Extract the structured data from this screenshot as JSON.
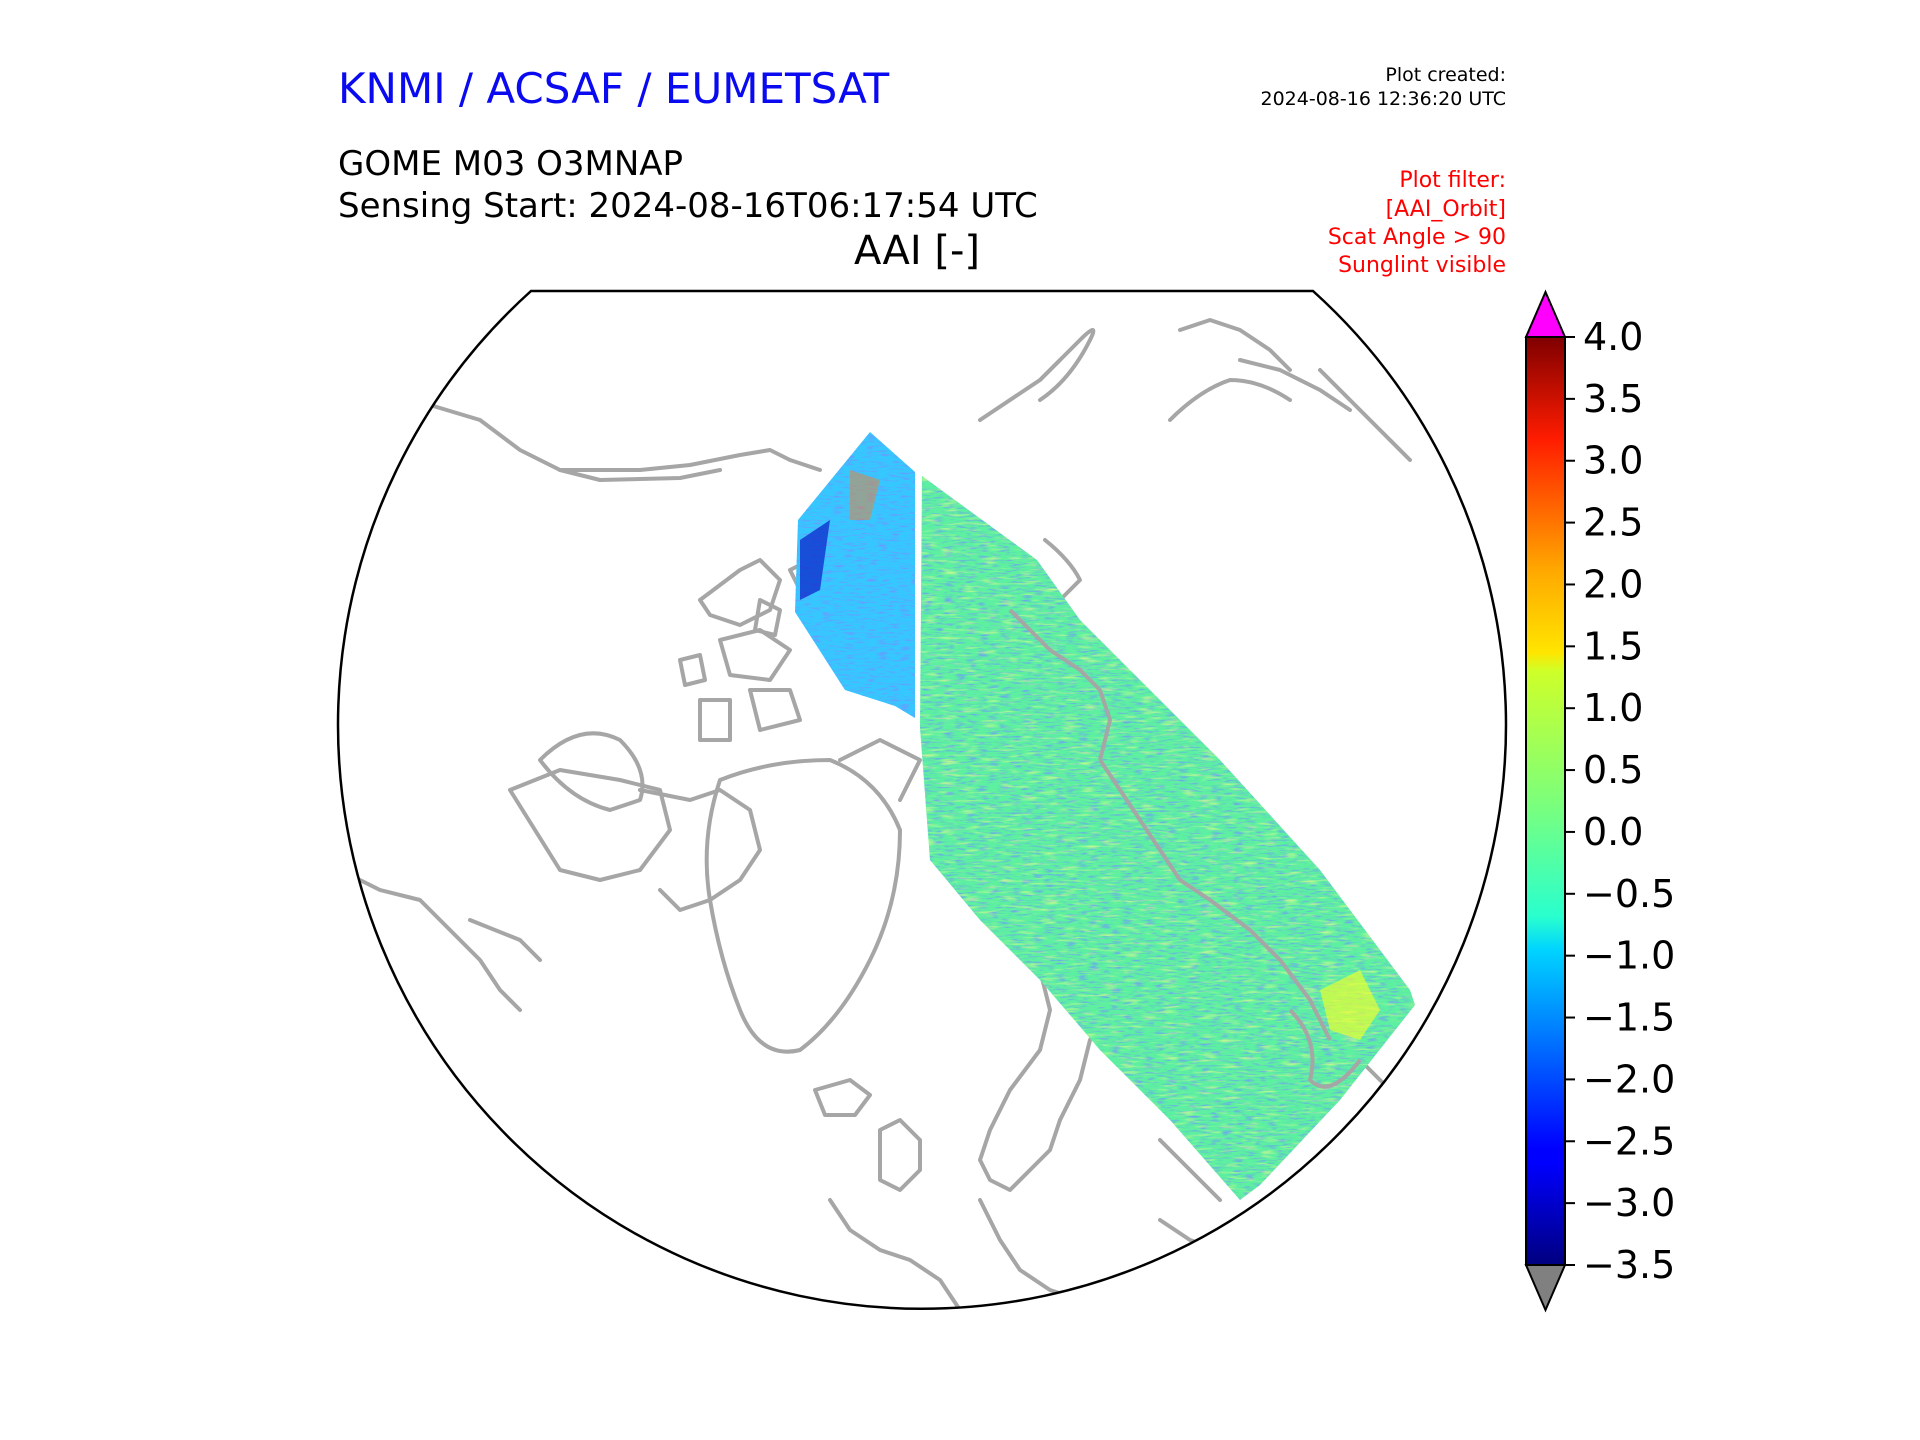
{
  "header": {
    "brand": "KNMI / ACSAF / EUMETSAT",
    "plot_created_label": "Plot created:",
    "plot_created_value": "2024-08-16 12:36:20 UTC",
    "product": "GOME M03 O3MNAP",
    "sensing_start": "Sensing Start: 2024-08-16T06:17:54 UTC",
    "variable_title": "AAI [-]"
  },
  "plot_filter": [
    "Plot filter:",
    "[AAI_Orbit]",
    "Scat Angle > 90",
    "Sunglint visible"
  ],
  "map": {
    "projection": "north-polar stereographic",
    "coastline_color": "#a6a6a6",
    "boundary_color": "#000000",
    "swath_dominant_color": "#5cf0a0"
  },
  "colorbar": {
    "ticks": [
      "4.0",
      "3.5",
      "3.0",
      "2.5",
      "2.0",
      "1.5",
      "1.0",
      "0.5",
      "0.0",
      "−0.5",
      "−1.0",
      "−1.5",
      "−2.0",
      "−2.5",
      "−3.0",
      "−3.5"
    ],
    "min": -3.5,
    "max": 4.0,
    "over_color": "#ff00ff",
    "under_color": "#808080",
    "colormap": "jet"
  }
}
